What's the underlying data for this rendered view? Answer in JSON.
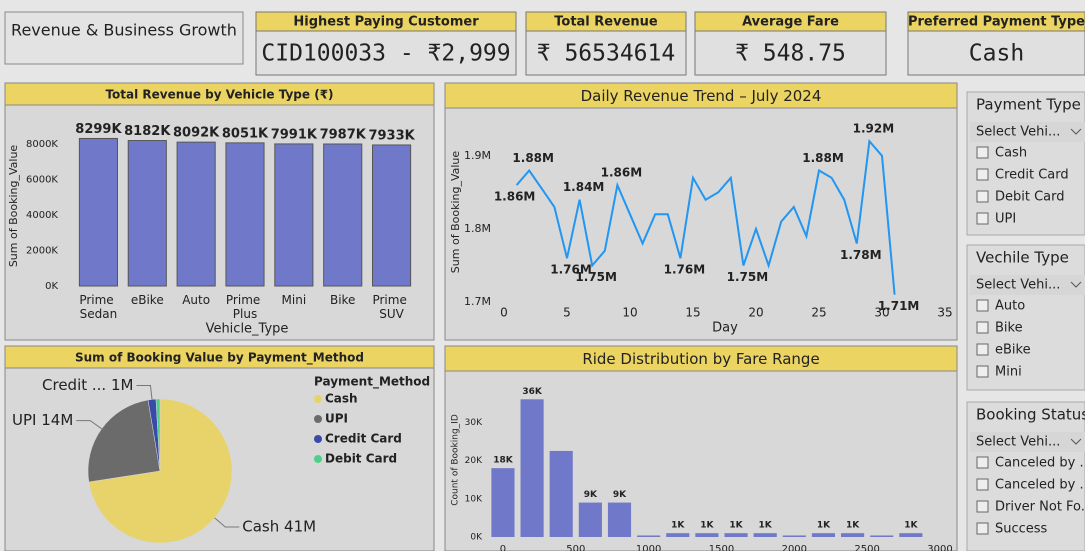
{
  "header": {
    "title": "Revenue & Business Growth"
  },
  "cards": [
    {
      "label": "Highest Paying Customer",
      "value": "CID100033 - ₹2,999"
    },
    {
      "label": "Total Revenue",
      "value": "₹ 56534614"
    },
    {
      "label": "Average Fare",
      "value": "₹ 548.75"
    },
    {
      "label": "Preferred Payment Type",
      "value": "Cash"
    }
  ],
  "slicers": [
    {
      "title": "Payment Type",
      "placeholder": "Select Vehi...",
      "options": [
        "Cash",
        "Credit Card",
        "Debit Card",
        "UPI"
      ]
    },
    {
      "title": "Vechile Type",
      "placeholder": "Select Vehi...",
      "options": [
        "Auto",
        "Bike",
        "eBike",
        "Mini"
      ]
    },
    {
      "title": "Booking Status",
      "placeholder": "Select Vehi...",
      "options": [
        "Canceled by ...",
        "Canceled by ...",
        "Driver Not Fo...",
        "Success"
      ]
    }
  ],
  "chart_data": [
    {
      "type": "bar",
      "title": "Total Revenue by Vehicle Type (₹)",
      "x_label": "Vehicle_Type",
      "y_label": "Sum of Booking_Value",
      "categories": [
        "Prime Sedan",
        "eBike",
        "Auto",
        "Prime Plus",
        "Mini",
        "Bike",
        "Prime SUV"
      ],
      "values": [
        8299,
        8182,
        8092,
        8051,
        7991,
        7987,
        7933
      ],
      "value_labels": [
        "8299K",
        "8182K",
        "8092K",
        "8051K",
        "7991K",
        "7987K",
        "7933K"
      ],
      "color": "#7079c9",
      "ylim": [
        0,
        9000
      ],
      "yticks": [
        {
          "value": 0,
          "label": "0K"
        },
        {
          "value": 2000,
          "label": "2000K"
        },
        {
          "value": 4000,
          "label": "4000K"
        },
        {
          "value": 6000,
          "label": "6000K"
        },
        {
          "value": 8000,
          "label": "8000K"
        }
      ]
    },
    {
      "type": "line",
      "title": "Daily Revenue Trend – July 2024",
      "x_label": "Day",
      "y_label": "Sum of Booking_Value",
      "x": [
        1,
        2,
        3,
        4,
        5,
        6,
        7,
        8,
        9,
        10,
        11,
        12,
        13,
        14,
        15,
        16,
        17,
        18,
        19,
        20,
        21,
        22,
        23,
        24,
        25,
        26,
        27,
        28,
        29,
        30,
        31
      ],
      "values": [
        1.86,
        1.88,
        1.855,
        1.83,
        1.76,
        1.84,
        1.75,
        1.77,
        1.86,
        1.82,
        1.78,
        1.82,
        1.82,
        1.76,
        1.87,
        1.84,
        1.85,
        1.87,
        1.75,
        1.8,
        1.75,
        1.81,
        1.83,
        1.79,
        1.88,
        1.87,
        1.84,
        1.78,
        1.92,
        1.9,
        1.71
      ],
      "value_labels": [
        "1.86M",
        "1.88M",
        null,
        null,
        "1.76M",
        "1.84M",
        "1.75M",
        null,
        "1.86M",
        null,
        null,
        null,
        null,
        "1.76M",
        null,
        null,
        null,
        null,
        "1.75M",
        null,
        null,
        null,
        null,
        null,
        "1.88M",
        null,
        null,
        "1.78M",
        "1.92M",
        null,
        "1.71M"
      ],
      "color": "#2196f3",
      "xlim": [
        0,
        35
      ],
      "xticks": [
        0,
        5,
        10,
        15,
        20,
        25,
        30,
        35
      ],
      "ylim": [
        1.7,
        1.96
      ],
      "yticks": [
        {
          "value": 1.7,
          "label": "1.7M"
        },
        {
          "value": 1.8,
          "label": "1.8M"
        },
        {
          "value": 1.9,
          "label": "1.9M"
        }
      ]
    },
    {
      "type": "pie",
      "title": "Sum of Booking Value by Payment_Method",
      "legend_title": "Payment_Method",
      "categories": [
        "Cash",
        "UPI",
        "Credit Card",
        "Debit Card"
      ],
      "values": [
        41,
        14,
        1,
        0.5
      ],
      "value_labels": [
        "Cash 41M",
        "UPI 14M",
        "Credit ... 1M",
        null
      ],
      "colors": [
        "#e8d36b",
        "#6b6b6b",
        "#3b4aa8",
        "#4fd08a"
      ]
    },
    {
      "type": "histogram",
      "title": "Ride Distribution by Fare Range",
      "y_label": "Count of Booking_ID",
      "bins": [
        -100,
        100,
        300,
        500,
        700,
        900,
        1100,
        1300,
        1500,
        1700,
        1900,
        2100,
        2300,
        2500,
        2700,
        2900
      ],
      "values": [
        18,
        36,
        22.5,
        9,
        9,
        0.4,
        1,
        1,
        1,
        1,
        0.4,
        1,
        1,
        0.4,
        1
      ],
      "value_labels": [
        "18K",
        "36K",
        null,
        "9K",
        "9K",
        null,
        "1K",
        "1K",
        "1K",
        "1K",
        null,
        "1K",
        "1K",
        null,
        "1K"
      ],
      "color": "#7079c9",
      "xlim": [
        -130,
        3000
      ],
      "xticks": [
        0,
        500,
        1000,
        1500,
        2000,
        2500,
        3000
      ],
      "ylim": [
        0,
        40
      ],
      "yticks": [
        {
          "value": 0,
          "label": "0K"
        },
        {
          "value": 10,
          "label": "10K"
        },
        {
          "value": 20,
          "label": "20K"
        },
        {
          "value": 30,
          "label": "30K"
        }
      ]
    }
  ]
}
